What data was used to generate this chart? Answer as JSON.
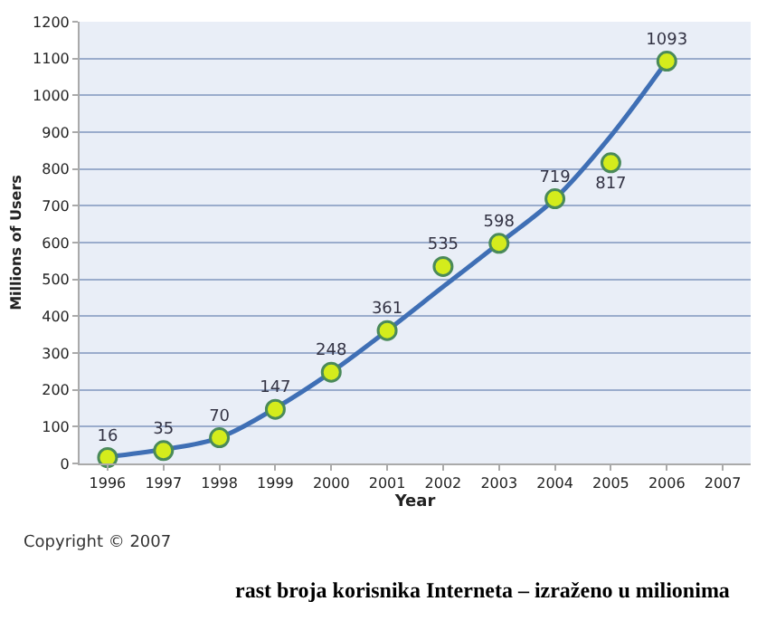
{
  "chart_data": {
    "type": "line",
    "xlabel": "Year",
    "ylabel": "Millions of Users",
    "categories": [
      "1996",
      "1997",
      "1998",
      "1999",
      "2000",
      "2001",
      "2002",
      "2003",
      "2004",
      "2005",
      "2006",
      "2007"
    ],
    "series": [
      {
        "color": "#3f6fb5",
        "marker": "none",
        "line_style": "solid",
        "values": [
          18,
          38,
          70,
          150,
          248,
          361,
          480,
          598,
          719,
          890,
          1093,
          null
        ]
      },
      {
        "type": "scatter",
        "color": "#d4ec1c",
        "marker": "circle",
        "values": [
          16,
          35,
          70,
          147,
          248,
          361,
          535,
          598,
          719,
          817,
          1093,
          null
        ],
        "value_labels": [
          "16",
          "35",
          "70",
          "147",
          "248",
          "361",
          "535",
          "598",
          "719",
          "817",
          "1093",
          null
        ]
      }
    ],
    "ylim": [
      0,
      1200
    ],
    "yticks": [
      0,
      100,
      200,
      300,
      400,
      500,
      600,
      700,
      800,
      900,
      1000,
      1100,
      1200
    ],
    "grid": "y",
    "annotations": [
      "Copyright © 2007",
      "rast broja korisnika Interneta – izraženo u milionima"
    ]
  }
}
